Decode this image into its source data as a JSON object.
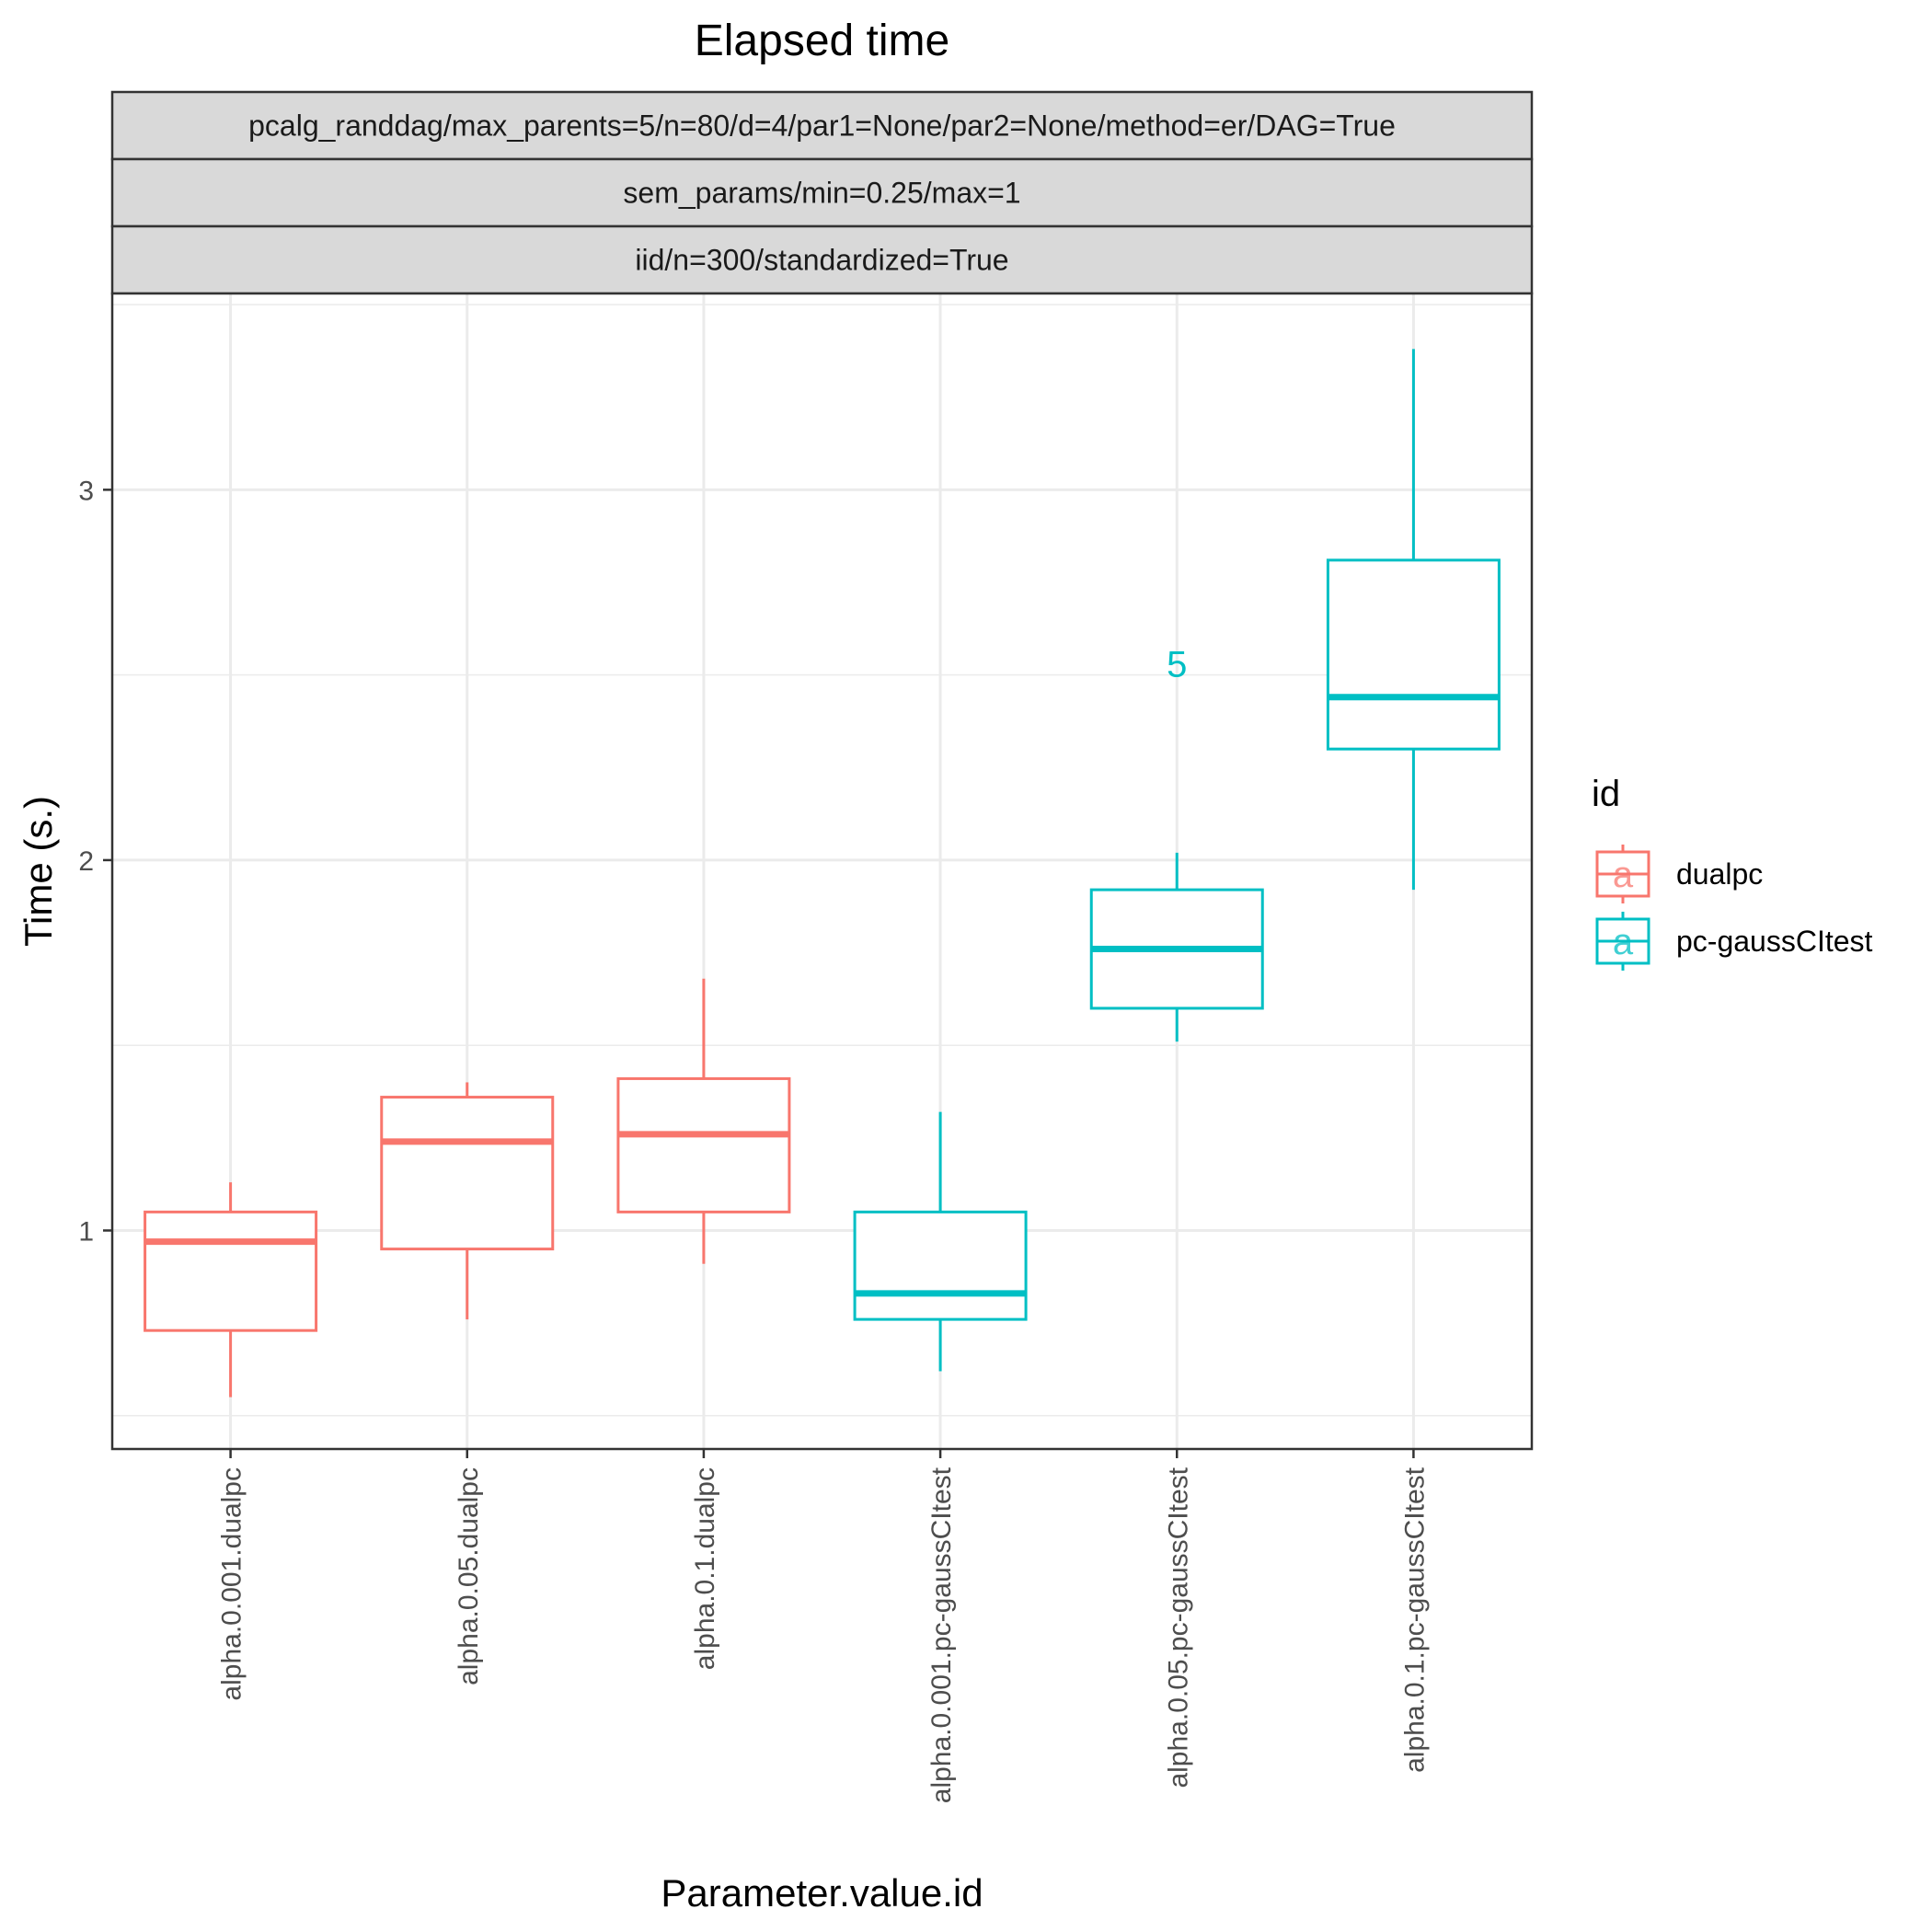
{
  "chart_data": {
    "type": "box",
    "title": "Elapsed time",
    "facet_strips": [
      "pcalg_randdag/max_parents=5/n=80/d=4/par1=None/par2=None/method=er/DAG=True",
      "sem_params/min=0.25/max=1",
      "iid/n=300/standardized=True"
    ],
    "xlabel": "Parameter.value.id",
    "ylabel": "Time (s.)",
    "ylim": [
      0.41,
      3.53
    ],
    "y_ticks": [
      1,
      2,
      3
    ],
    "y_minor_ticks": [
      0.5,
      1.5,
      2.5,
      3.5
    ],
    "grid": true,
    "categories": [
      "alpha.0.001.dualpc",
      "alpha.0.05.dualpc",
      "alpha.0.1.dualpc",
      "alpha.0.001.pc-gaussCItest",
      "alpha.0.05.pc-gaussCItest",
      "alpha.0.1.pc-gaussCItest"
    ],
    "boxes": [
      {
        "category": "alpha.0.001.dualpc",
        "group": "dualpc",
        "min": 0.55,
        "q1": 0.73,
        "median": 0.97,
        "q3": 1.05,
        "max": 1.13
      },
      {
        "category": "alpha.0.05.dualpc",
        "group": "dualpc",
        "min": 0.76,
        "q1": 0.95,
        "median": 1.24,
        "q3": 1.36,
        "max": 1.4
      },
      {
        "category": "alpha.0.1.dualpc",
        "group": "dualpc",
        "min": 0.91,
        "q1": 1.05,
        "median": 1.26,
        "q3": 1.41,
        "max": 1.68
      },
      {
        "category": "alpha.0.001.pc-gaussCItest",
        "group": "pc-gaussCItest",
        "min": 0.62,
        "q1": 0.76,
        "median": 0.83,
        "q3": 1.05,
        "max": 1.32
      },
      {
        "category": "alpha.0.05.pc-gaussCItest",
        "group": "pc-gaussCItest",
        "min": 1.51,
        "q1": 1.6,
        "median": 1.76,
        "q3": 1.92,
        "max": 2.02
      },
      {
        "category": "alpha.0.1.pc-gaussCItest",
        "group": "pc-gaussCItest",
        "min": 1.92,
        "q1": 2.3,
        "median": 2.44,
        "q3": 2.81,
        "max": 3.38
      }
    ],
    "annotations": [
      {
        "category": "alpha.0.05.pc-gaussCItest",
        "y": 2.53,
        "text": "5",
        "color": "#00BFC4"
      }
    ],
    "legend": {
      "title": "id",
      "position": "right",
      "entries": [
        {
          "name": "dualpc",
          "color": "#F8766D",
          "key_glyph": "a"
        },
        {
          "name": "pc-gaussCItest",
          "color": "#00BFC4",
          "key_glyph": "a"
        }
      ]
    }
  }
}
